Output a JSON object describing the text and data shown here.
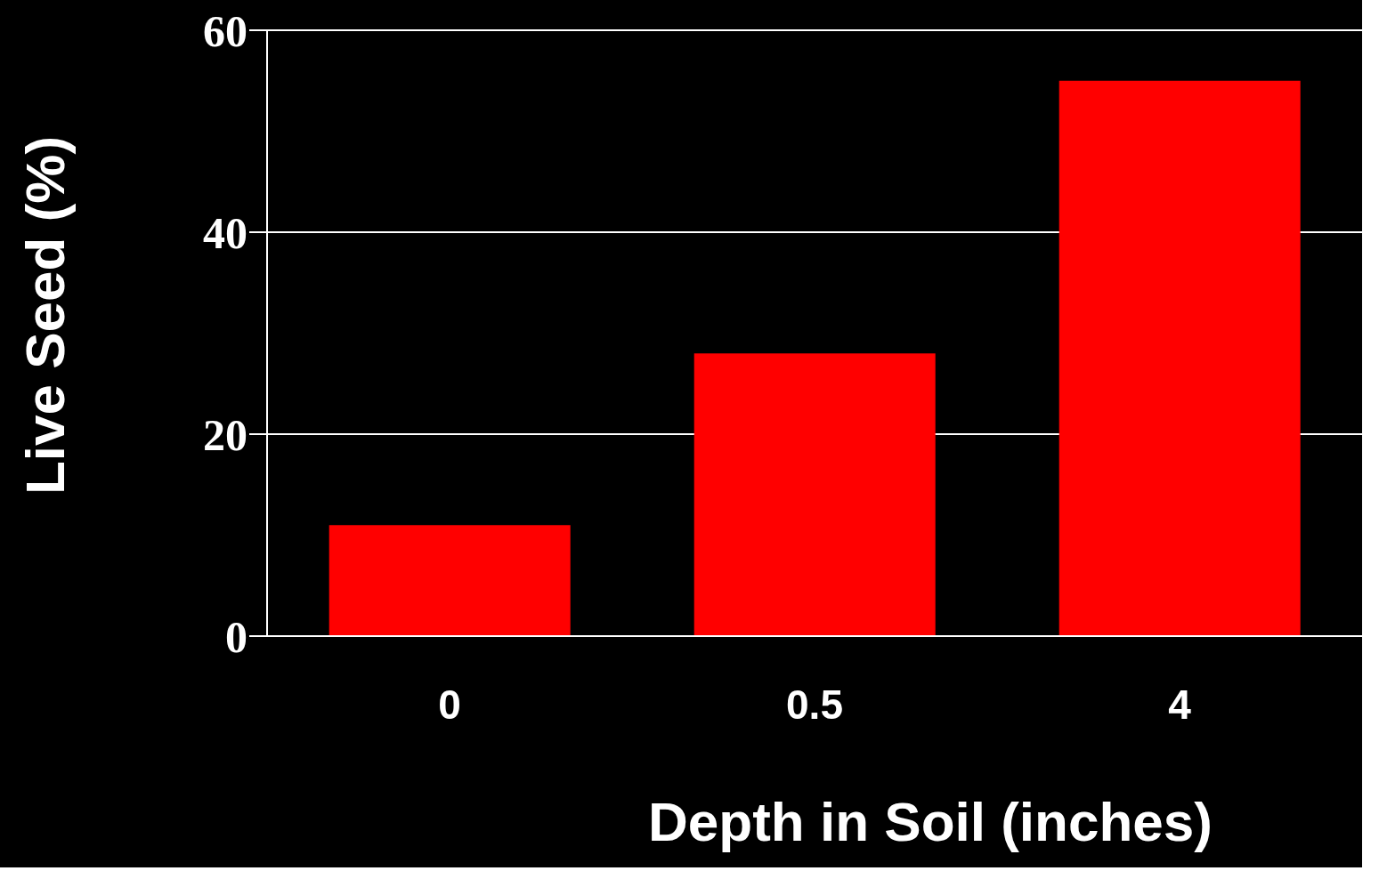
{
  "chart_data": {
    "type": "bar",
    "xlabel": "Depth in Soil (inches)",
    "ylabel": "Live Seed (%)",
    "categories": [
      "0",
      "0.5",
      "4"
    ],
    "values": [
      11,
      28,
      55
    ],
    "color": "#ff0000",
    "ylim": [
      0,
      60
    ],
    "yticks": [
      0,
      20,
      40,
      60
    ],
    "grid": "y"
  }
}
